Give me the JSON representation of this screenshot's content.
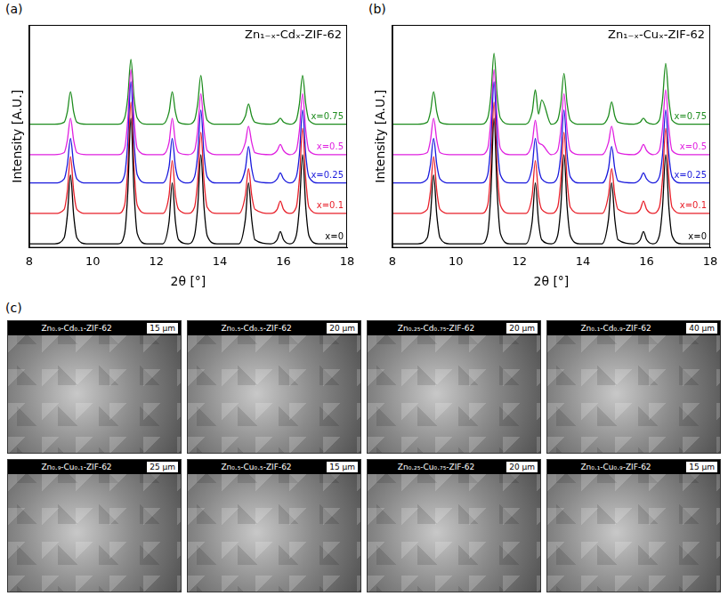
{
  "chart_data": [
    {
      "type": "line",
      "panel": "(a)",
      "title": "Zn₁₋ₓ-Cdₓ-ZIF-62",
      "x_label": "2θ [°]",
      "y_label": "Intensity [A.U.]",
      "x": [
        8,
        8.8,
        9.1,
        9.2,
        9.3,
        9.4,
        9.5,
        9.8,
        10.8,
        11.0,
        11.1,
        11.2,
        11.3,
        11.4,
        11.7,
        12.2,
        12.4,
        12.5,
        12.6,
        12.7,
        13.0,
        13.2,
        13.3,
        13.4,
        13.5,
        13.6,
        13.9,
        14.6,
        14.8,
        14.9,
        15.0,
        15.1,
        15.6,
        15.8,
        15.9,
        16.0,
        16.2,
        16.4,
        16.5,
        16.6,
        16.7,
        16.8,
        17.1,
        18
      ],
      "xlim": [
        8,
        18
      ],
      "xticks": [
        8,
        10,
        12,
        14,
        16,
        18
      ],
      "ylim": [
        0,
        110
      ],
      "grid": false,
      "tick_labels": "x",
      "series": [
        {
          "name": "x=0",
          "color": "#000000",
          "values": [
            2,
            2,
            5,
            16,
            36,
            16,
            5,
            2,
            2,
            7,
            27,
            64,
            27,
            7,
            2,
            2,
            13,
            32,
            13,
            4,
            2,
            6,
            20,
            46,
            20,
            6,
            2,
            2,
            14,
            32,
            14,
            4,
            2,
            4,
            8,
            4,
            2,
            6,
            20,
            46,
            20,
            6,
            2,
            2
          ]
        },
        {
          "name": "x=0.1",
          "color": "#e8202a",
          "values": [
            17,
            17,
            19,
            28,
            45,
            28,
            19,
            17,
            17,
            21,
            39,
            72,
            39,
            21,
            17,
            17,
            26,
            43,
            26,
            19,
            17,
            20,
            33,
            57,
            33,
            20,
            17,
            17,
            26,
            39,
            26,
            19,
            17,
            19,
            23,
            19,
            17,
            20,
            34,
            59,
            34,
            20,
            17,
            17
          ]
        },
        {
          "name": "x=0.25",
          "color": "#1a1adc",
          "values": [
            32,
            32,
            34,
            41,
            54,
            41,
            34,
            32,
            32,
            36,
            52,
            82,
            52,
            36,
            32,
            32,
            40,
            54,
            40,
            34,
            32,
            35,
            46,
            68,
            46,
            35,
            32,
            32,
            39,
            50,
            39,
            33,
            32,
            34,
            37,
            34,
            32,
            35,
            46,
            68,
            46,
            35,
            32,
            32
          ]
        },
        {
          "name": "x=0.5",
          "color": "#e020e0",
          "values": [
            46,
            46,
            47,
            53,
            64,
            53,
            47,
            46,
            46,
            49,
            63,
            88,
            63,
            49,
            46,
            46,
            52,
            64,
            52,
            47,
            46,
            48,
            58,
            76,
            58,
            48,
            46,
            46,
            52,
            60,
            52,
            47,
            46,
            48,
            51,
            48,
            46,
            48,
            58,
            76,
            58,
            48,
            46,
            46
          ]
        },
        {
          "name": "x=0.75",
          "color": "#1e8c1e",
          "values": [
            61,
            61,
            62,
            67,
            77,
            67,
            62,
            61,
            61,
            64,
            74,
            93,
            74,
            64,
            61,
            61,
            67,
            77,
            67,
            62,
            61,
            63,
            71,
            85,
            71,
            63,
            61,
            61,
            65,
            71,
            65,
            62,
            61,
            62,
            64,
            62,
            61,
            63,
            71,
            85,
            71,
            63,
            61,
            61
          ]
        }
      ]
    },
    {
      "type": "line",
      "panel": "(b)",
      "title": "Zn₁₋ₓ-Cuₓ-ZIF-62",
      "x_label": "2θ [°]",
      "y_label": "Intensity [A.U.]",
      "x": [
        8,
        8.8,
        9.1,
        9.2,
        9.3,
        9.4,
        9.5,
        9.8,
        10.8,
        11.0,
        11.1,
        11.2,
        11.3,
        11.4,
        11.7,
        12.2,
        12.4,
        12.5,
        12.6,
        12.7,
        13.0,
        13.2,
        13.3,
        13.4,
        13.5,
        13.6,
        13.9,
        14.6,
        14.8,
        14.9,
        15.0,
        15.1,
        15.6,
        15.8,
        15.9,
        16.0,
        16.2,
        16.4,
        16.5,
        16.6,
        16.7,
        16.8,
        17.1,
        18
      ],
      "xlim": [
        8,
        18
      ],
      "xticks": [
        8,
        10,
        12,
        14,
        16,
        18
      ],
      "ylim": [
        0,
        110
      ],
      "grid": false,
      "tick_labels": "x",
      "series": [
        {
          "name": "x=0",
          "color": "#000000",
          "values": [
            2,
            2,
            5,
            16,
            36,
            16,
            5,
            2,
            2,
            7,
            27,
            64,
            27,
            7,
            2,
            2,
            13,
            32,
            13,
            4,
            2,
            6,
            20,
            46,
            20,
            6,
            2,
            2,
            14,
            32,
            14,
            4,
            2,
            4,
            8,
            4,
            2,
            6,
            20,
            46,
            20,
            6,
            2,
            2
          ]
        },
        {
          "name": "x=0.1",
          "color": "#e8202a",
          "values": [
            17,
            17,
            19,
            28,
            45,
            28,
            19,
            17,
            17,
            21,
            39,
            72,
            39,
            21,
            17,
            17,
            26,
            43,
            26,
            19,
            17,
            20,
            33,
            57,
            33,
            20,
            17,
            17,
            26,
            39,
            26,
            19,
            17,
            19,
            23,
            19,
            17,
            20,
            34,
            59,
            34,
            20,
            17,
            17
          ]
        },
        {
          "name": "x=0.25",
          "color": "#1a1adc",
          "values": [
            32,
            32,
            34,
            41,
            54,
            41,
            34,
            32,
            32,
            36,
            52,
            82,
            52,
            36,
            32,
            32,
            40,
            54,
            40,
            34,
            32,
            35,
            46,
            68,
            46,
            35,
            32,
            32,
            39,
            50,
            39,
            33,
            32,
            34,
            37,
            34,
            32,
            35,
            46,
            68,
            46,
            35,
            32,
            32
          ]
        },
        {
          "name": "x=0.5",
          "color": "#e020e0",
          "values": [
            46,
            46,
            47,
            53,
            64,
            53,
            47,
            46,
            46,
            49,
            63,
            88,
            63,
            49,
            46,
            46,
            52,
            63,
            52,
            51,
            46,
            48,
            58,
            76,
            58,
            48,
            46,
            46,
            52,
            60,
            52,
            47,
            46,
            48,
            51,
            48,
            46,
            48,
            59,
            78,
            59,
            48,
            46,
            46
          ]
        },
        {
          "name": "x=0.75",
          "color": "#1e8c1e",
          "values": [
            61,
            61,
            62,
            67,
            77,
            67,
            62,
            61,
            61,
            64,
            75,
            96,
            75,
            64,
            61,
            61,
            67,
            78,
            66,
            73,
            61,
            63,
            71,
            86,
            71,
            63,
            61,
            61,
            65,
            72,
            65,
            62,
            61,
            62,
            64,
            62,
            61,
            63,
            73,
            91,
            73,
            63,
            61,
            61
          ]
        }
      ]
    }
  ],
  "sem_panel": {
    "panel": "(c)",
    "images": [
      {
        "title": "Zn₀.₉-Cd₀.₁-ZIF-62",
        "scale_bar": "15 µm"
      },
      {
        "title": "Zn₀.₅-Cd₀.₅-ZIF-62",
        "scale_bar": "20 µm"
      },
      {
        "title": "Zn₀.₂₅-Cd₀.₇₅-ZIF-62",
        "scale_bar": "20 µm"
      },
      {
        "title": "Zn₀.₁-Cd₀.₉-ZIF-62",
        "scale_bar": "40 µm"
      },
      {
        "title": "Zn₀.₉-Cu₀.₁-ZIF-62",
        "scale_bar": "25 µm"
      },
      {
        "title": "Zn₀.₅-Cu₀.₅-ZIF-62",
        "scale_bar": "15 µm"
      },
      {
        "title": "Zn₀.₂₅-Cu₀.₇₅-ZIF-62",
        "scale_bar": "20 µm"
      },
      {
        "title": "Zn₀.₁-Cu₀.₉-ZIF-62",
        "scale_bar": "15 µm"
      }
    ]
  }
}
